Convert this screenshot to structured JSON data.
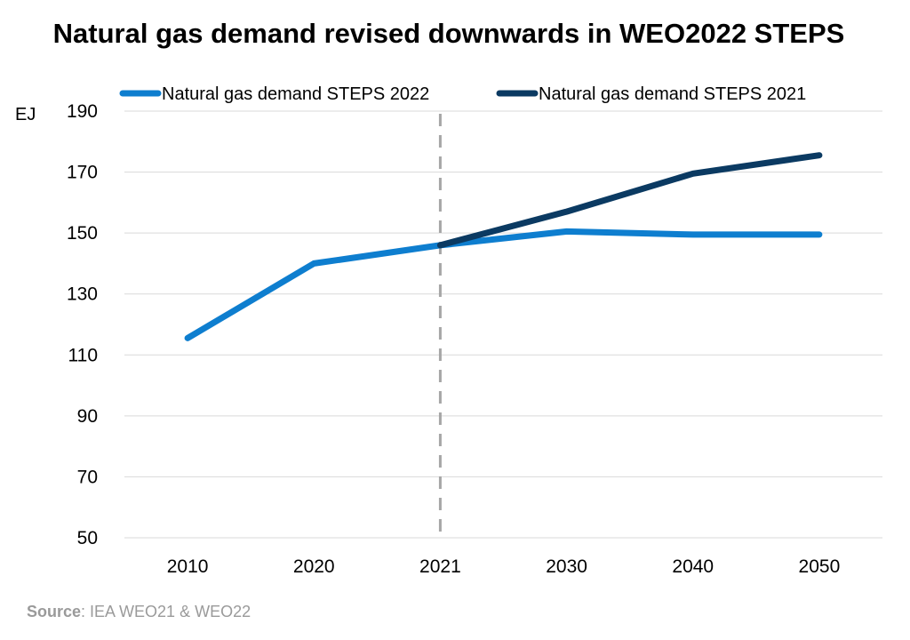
{
  "chart_data": {
    "type": "line",
    "title": "Natural gas demand revised downwards in WEO2022 STEPS",
    "ylabel": "EJ",
    "xlabel": "",
    "categories": [
      "2010",
      "2020",
      "2021",
      "2030",
      "2040",
      "2050"
    ],
    "yticks": [
      50,
      70,
      90,
      110,
      130,
      150,
      170,
      190
    ],
    "ylim": [
      50,
      190
    ],
    "grid": true,
    "legend_position": "top",
    "divider_at": "2021",
    "series": [
      {
        "name": "Natural gas demand STEPS 2022",
        "color": "#0e7ecf",
        "x": [
          "2010",
          "2020",
          "2021",
          "2030",
          "2040",
          "2050"
        ],
        "values": [
          115.5,
          140,
          146,
          150.5,
          149.5,
          149.5
        ]
      },
      {
        "name": "Natural gas demand STEPS 2021",
        "color": "#0b3a62",
        "x": [
          "2021",
          "2030",
          "2040",
          "2050"
        ],
        "values": [
          146,
          157,
          169.5,
          175.5
        ]
      }
    ]
  },
  "source": {
    "label": "Source",
    "text": ": IEA WEO21 & WEO22"
  },
  "colors": {
    "grid": "#d9d9d9",
    "divider": "#a6a6a6"
  }
}
